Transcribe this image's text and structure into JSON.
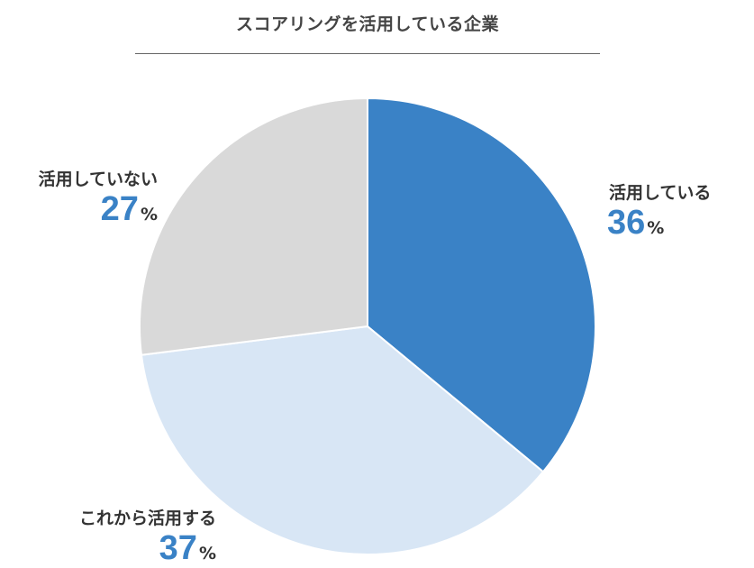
{
  "title": "スコアリングを活用している企業",
  "chart_data": {
    "type": "pie",
    "title": "スコアリングを活用している企業",
    "categories": [
      "活用している",
      "これから活用する",
      "活用していない"
    ],
    "values": [
      36,
      37,
      27
    ],
    "unit": "%",
    "colors": [
      "#3a82c6",
      "#d8e6f5",
      "#d9d9d9"
    ],
    "start": "12 o'clock",
    "direction": "clockwise",
    "legend": "none",
    "data_labels": "outside"
  },
  "labels": {
    "using": {
      "name": "活用している",
      "value": "36",
      "unit": "%"
    },
    "planning": {
      "name": "これから活用する",
      "value": "37",
      "unit": "%"
    },
    "not_using": {
      "name": "活用していない",
      "value": "27",
      "unit": "%"
    }
  }
}
